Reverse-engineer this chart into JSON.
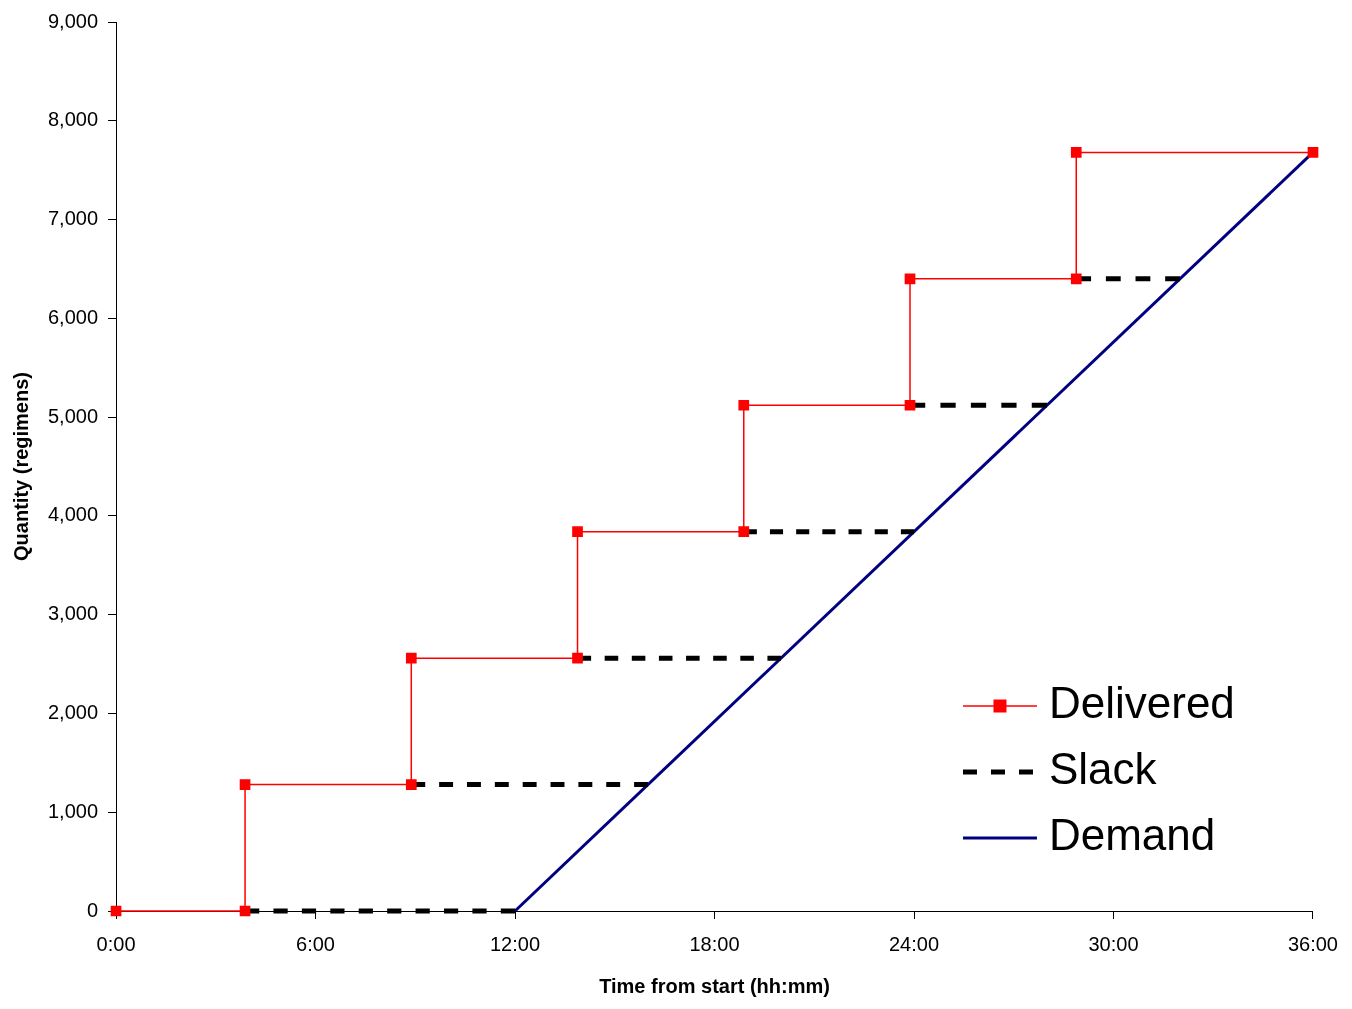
{
  "chart_data": {
    "type": "line",
    "xlabel": "Time from start (hh:mm)",
    "ylabel": "Quantity (regimens)",
    "xlim": [
      0,
      36
    ],
    "ylim": [
      0,
      9000
    ],
    "xticks": [
      {
        "value": 0,
        "label": "0:00"
      },
      {
        "value": 6,
        "label": "6:00"
      },
      {
        "value": 12,
        "label": "12:00"
      },
      {
        "value": 18,
        "label": "18:00"
      },
      {
        "value": 24,
        "label": "24:00"
      },
      {
        "value": 30,
        "label": "30:00"
      },
      {
        "value": 36,
        "label": "36:00"
      }
    ],
    "yticks": [
      0,
      {
        "value": 1000,
        "label": "1,000"
      },
      {
        "value": 2000,
        "label": "2,000"
      },
      {
        "value": 3000,
        "label": "3,000"
      },
      {
        "value": 4000,
        "label": "4,000"
      },
      {
        "value": 5000,
        "label": "5,000"
      },
      {
        "value": 6000,
        "label": "6,000"
      },
      {
        "value": 7000,
        "label": "7,000"
      },
      {
        "value": 8000,
        "label": "8,000"
      },
      {
        "value": 9000,
        "label": "9,000"
      }
    ],
    "legend": "bottom right",
    "series": [
      {
        "name": "Delivered",
        "color": "#ff0000",
        "marker": "square",
        "line_style": "solid",
        "x": [
          0,
          3.88,
          3.88,
          8.88,
          8.88,
          13.88,
          13.88,
          18.88,
          18.88,
          23.88,
          23.88,
          28.88,
          28.88,
          36
        ],
        "values": [
          0,
          0,
          1280,
          1280,
          2560,
          2560,
          3840,
          3840,
          5120,
          5120,
          6400,
          6400,
          7680,
          7680
        ]
      },
      {
        "name": "Slack",
        "color": "#000000",
        "marker": "none",
        "line_style": "dashed",
        "x": [
          3.88,
          12,
          null,
          8.88,
          16,
          null,
          13.88,
          20,
          null,
          18.88,
          24,
          null,
          23.88,
          28,
          null,
          28.88,
          32
        ],
        "values": [
          0,
          0,
          null,
          1280,
          1280,
          null,
          2560,
          2560,
          null,
          3840,
          3840,
          null,
          5120,
          5120,
          null,
          6400,
          6400
        ]
      },
      {
        "name": "Demand",
        "color": "#000080",
        "marker": "none",
        "line_style": "solid",
        "x": [
          12,
          36
        ],
        "values": [
          0,
          7680
        ]
      }
    ]
  }
}
